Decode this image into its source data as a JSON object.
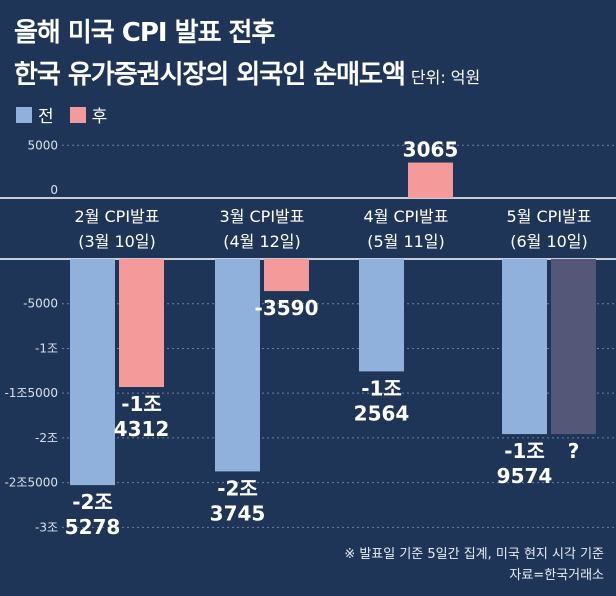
{
  "title_line1": "올해 미국 CPI 발표 전후",
  "title_line2": "한국 유가증권시장의 외국인 순매도액",
  "unit": "단위: 억원",
  "legend": [
    {
      "label": "전",
      "color": "#8fb1dc"
    },
    {
      "label": "후",
      "color": "#f59a9b"
    }
  ],
  "footnote": "※ 발표일 기준 5일간 집계, 미국 현지 시각 기준",
  "source": "자료=한국거래소",
  "chart_data": {
    "type": "bar",
    "categories": [
      "2월 CPI발표",
      "3월 CPI발표",
      "4월 CPI발표",
      "5월 CPI발표"
    ],
    "category_dates": [
      "(3월 10일)",
      "(4월 12일)",
      "(5월 11일)",
      "(6월 10일)"
    ],
    "series": [
      {
        "name": "전",
        "color": "#8fb1dc",
        "values": [
          -25278,
          -23745,
          -12564,
          -19574
        ],
        "labels": [
          [
            "-2조",
            "5278"
          ],
          [
            "-2조",
            "3745"
          ],
          [
            "-1조",
            "2564"
          ],
          [
            "-1조",
            "9574"
          ]
        ]
      },
      {
        "name": "후",
        "color": "#f59a9b",
        "values": [
          -14312,
          -3590,
          3065,
          -19574
        ],
        "labels": [
          [
            "-1조",
            "4312"
          ],
          [
            "-3590"
          ],
          [
            "3065"
          ],
          [
            "?"
          ]
        ],
        "placeholder_last": true
      }
    ],
    "y_ticks": [
      5000,
      0,
      -5000,
      -10000,
      -15000,
      -20000,
      -25000,
      -30000
    ],
    "y_tick_labels": [
      "5000",
      "0",
      "-5000",
      "-1조",
      "-1조5000",
      "-2조",
      "-2조5000",
      "-3조"
    ],
    "ylim": [
      -30000,
      5000
    ],
    "grid": true
  }
}
